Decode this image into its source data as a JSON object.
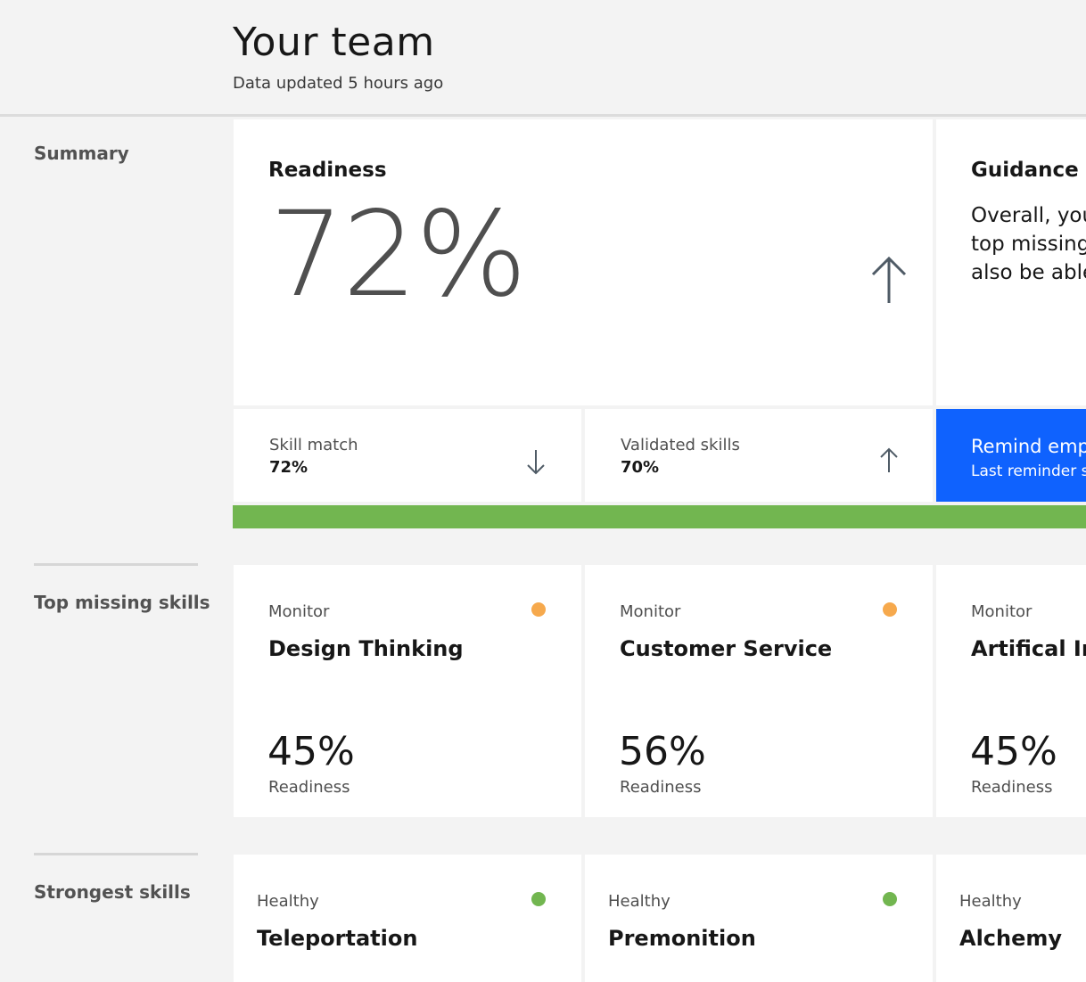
{
  "header": {
    "title": "Your team",
    "subtitle": "Data updated 5 hours ago"
  },
  "sections": {
    "summary": "Summary",
    "top_missing": "Top missing skills",
    "strongest": "Strongest skills"
  },
  "summary": {
    "readiness_title": "Readiness",
    "readiness_value": "72%",
    "readiness_trend": "up",
    "guidance_title": "Guidance",
    "guidance_lines": [
      "Overall, you",
      "top missing",
      "also be able"
    ],
    "skill_match_label": "Skill match",
    "skill_match_value": "72%",
    "skill_match_trend": "down",
    "validated_label": "Validated skills",
    "validated_value": "70%",
    "validated_trend": "up",
    "remind_label": "Remind emp",
    "remind_sub": "Last reminder s",
    "progress_bar_percent": 100
  },
  "top_missing_skills": [
    {
      "status": "Monitor",
      "name": "Design Thinking",
      "percent": "45%",
      "percent_label": "Readiness",
      "status_color": "#f6a94d"
    },
    {
      "status": "Monitor",
      "name": "Customer Service",
      "percent": "56%",
      "percent_label": "Readiness",
      "status_color": "#f6a94d"
    },
    {
      "status": "Monitor",
      "name": "Artifical In",
      "percent": "45%",
      "percent_label": "Readiness",
      "status_color": "#f6a94d"
    }
  ],
  "strongest_skills": [
    {
      "status": "Healthy",
      "name": "Teleportation",
      "status_color": "#72b650"
    },
    {
      "status": "Healthy",
      "name": "Premonition",
      "status_color": "#72b650"
    },
    {
      "status": "Healthy",
      "name": "Alchemy",
      "status_color": "#72b650"
    }
  ],
  "colors": {
    "accent_blue": "#0f62fe",
    "healthy_green": "#72b650",
    "monitor_orange": "#f6a94d"
  }
}
